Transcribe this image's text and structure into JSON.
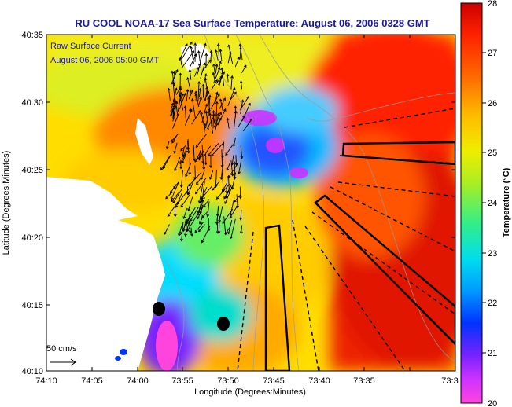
{
  "title": "RU COOL  NOAA-17  Sea Surface Temperature:  August 06, 2006 0328 GMT",
  "annotations": {
    "current_label": "Raw Surface Current",
    "current_time": "August 06, 2006 05:00 GMT",
    "scale_label": "50 cm/s"
  },
  "axes": {
    "xlabel": "Longitude (Degrees:Minutes)",
    "ylabel": "Latitude (Degrees:Minutes)",
    "x_ticks": [
      "74:10",
      "74:05",
      "74:00",
      "73:55",
      "73:50",
      "73:45",
      "73:40",
      "73:35",
      "73:3"
    ],
    "y_ticks": [
      "40:35",
      "40:30",
      "40:25",
      "40:20",
      "40:15",
      "40:10"
    ]
  },
  "colorbar": {
    "label": "Temperature (°C)",
    "ticks": [
      "28",
      "27",
      "26",
      "25",
      "24",
      "23",
      "22",
      "21",
      "20"
    ],
    "colors": [
      "#d40000",
      "#ff3300",
      "#ff8800",
      "#ffcc00",
      "#eeee00",
      "#77ee33",
      "#00e5c8",
      "#00aaff",
      "#0033ff",
      "#9933ff",
      "#ff44dd"
    ]
  }
}
